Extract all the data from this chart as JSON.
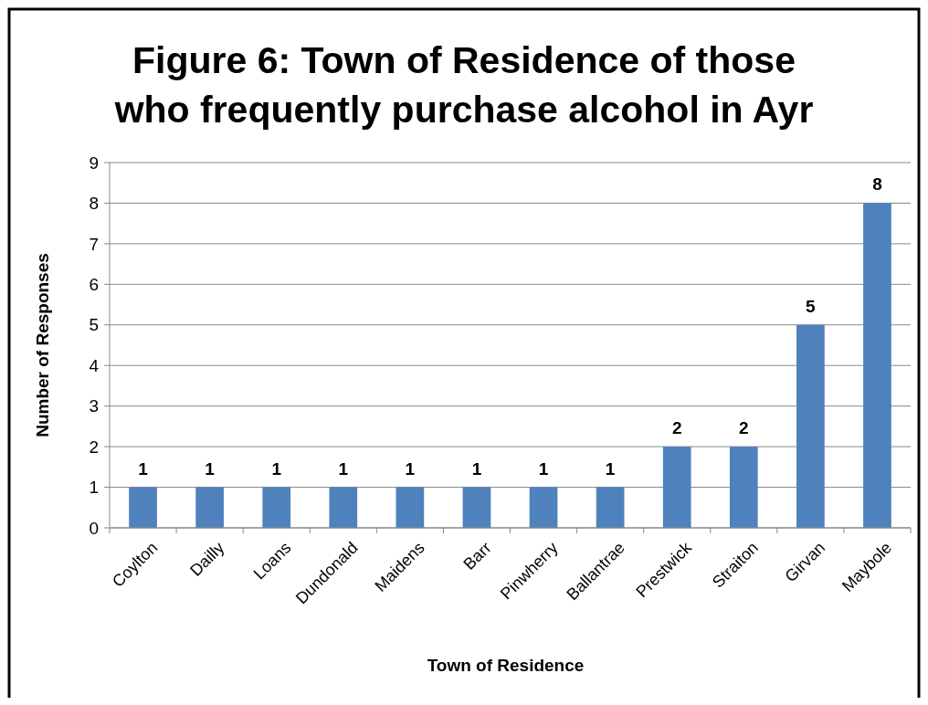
{
  "chart_data": {
    "type": "bar",
    "title": "Figure 6: Town of Residence of those who frequently purchase alcohol in Ayr",
    "xlabel": "Town of Residence",
    "ylabel": "Number of Responses",
    "categories": [
      "Coylton",
      "Dailly",
      "Loans",
      "Dundonald",
      "Maidens",
      "Barr",
      "Pinwherry",
      "Ballantrae",
      "Prestwick",
      "Straiton",
      "Girvan",
      "Maybole"
    ],
    "values": [
      1,
      1,
      1,
      1,
      1,
      1,
      1,
      1,
      2,
      2,
      5,
      8
    ],
    "color": "#4f81bd",
    "ylim": [
      0,
      9
    ],
    "yticks": [
      0,
      1,
      2,
      3,
      4,
      5,
      6,
      7,
      8,
      9
    ],
    "grid": "y",
    "data_labels": true
  }
}
